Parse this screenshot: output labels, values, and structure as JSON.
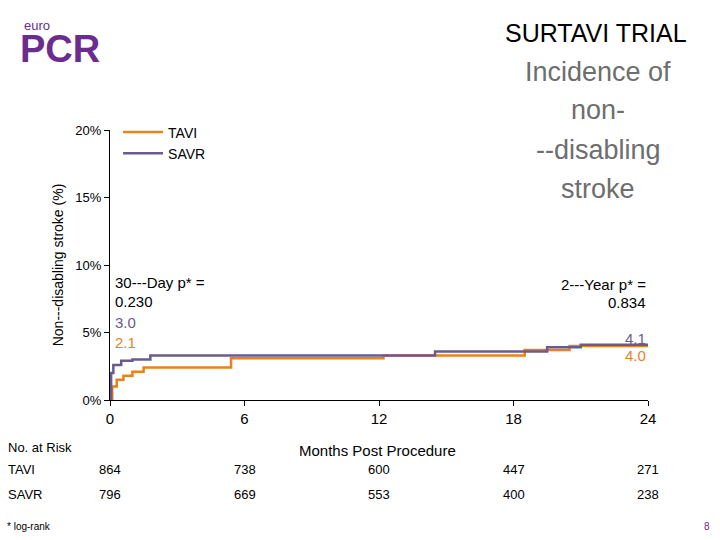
{
  "chart_data": {
    "type": "line",
    "title": "SURTAVI TRIAL",
    "subtitle": [
      "Incidence of",
      "non-",
      "--disabling",
      "stroke"
    ],
    "logo": [
      "euro",
      "PCR"
    ],
    "x_label": "Months Post Procedure",
    "y_label": "Non---disabling stroke (%)",
    "line_style": "step",
    "legend": "upper left",
    "grid": false,
    "xlim": [
      0,
      24
    ],
    "xticks": [
      0,
      6,
      12,
      18,
      24
    ],
    "ylim": [
      0,
      20
    ],
    "yticks": [
      {
        "value": 0,
        "label": "0%"
      },
      {
        "value": 5,
        "label": "5%"
      },
      {
        "value": 10,
        "label": "10%"
      },
      {
        "value": 15,
        "label": "15%"
      },
      {
        "value": 20,
        "label": "20%"
      }
    ],
    "series": [
      {
        "name": "TAVI",
        "color": "#e8821e",
        "x": [
          0,
          0.1,
          0.3,
          0.6,
          1.0,
          1.5,
          5.4,
          12.2,
          18.5,
          20.5,
          24
        ],
        "values": [
          0,
          1.0,
          1.5,
          1.8,
          2.1,
          2.4,
          3.1,
          3.3,
          3.7,
          4.0,
          4.0
        ]
      },
      {
        "name": "SAVR",
        "color": "#6b5b8c",
        "x": [
          0,
          0.05,
          0.15,
          0.5,
          1.0,
          1.8,
          14.5,
          19.5,
          21.0,
          24
        ],
        "values": [
          0,
          2.0,
          2.6,
          2.9,
          3.0,
          3.3,
          3.6,
          3.9,
          4.1,
          4.1
        ]
      }
    ],
    "landmarks": [
      {
        "label_lines": [
          "30---Day p* =",
          "0.230"
        ],
        "series": [
          "SAVR",
          "TAVI"
        ],
        "values": [
          3.0,
          2.1
        ],
        "value_labels": [
          "3.0",
          "2.1"
        ]
      },
      {
        "label_lines": [
          "2---Year p* =",
          "0.834"
        ],
        "series": [
          "SAVR",
          "TAVI"
        ],
        "values": [
          4.1,
          4.0
        ],
        "value_labels": [
          "4.1",
          "4.0"
        ]
      }
    ],
    "risk_table": {
      "title": "No. at Risk",
      "x": [
        0,
        6,
        12,
        18,
        24
      ],
      "rows": [
        {
          "name": "TAVI",
          "values": [
            864,
            738,
            600,
            447,
            271
          ]
        },
        {
          "name": "SAVR",
          "values": [
            796,
            669,
            553,
            400,
            238
          ]
        }
      ]
    },
    "footnote": "* log-rank",
    "page_number": "8"
  }
}
